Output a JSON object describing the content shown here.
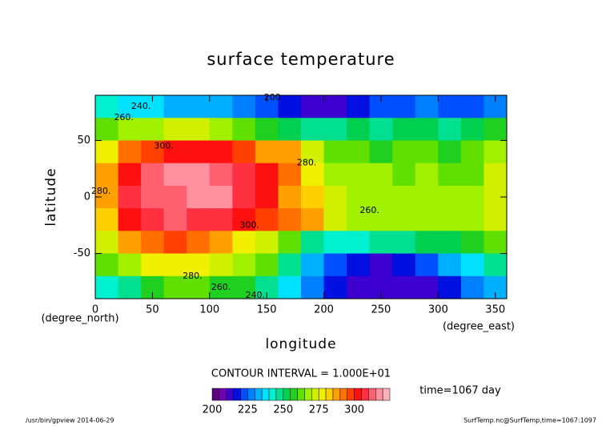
{
  "chart_data": {
    "type": "contourf",
    "title": "surface temperature",
    "x_label": "longitude",
    "y_label": "latitude",
    "x_unit": "(degree_east)",
    "y_unit": "(degree_north)",
    "contour_interval": "CONTOUR INTERVAL = 1.000E+01",
    "time_label": "time=1067 day",
    "footer_left": "/usr/bin/gpview  2014-06-29",
    "footer_right": "SurfTemp.nc@SurfTemp,time=1067:1097",
    "xlim": [
      0,
      360
    ],
    "ylim": [
      -90,
      90
    ],
    "xticks": [
      0,
      50,
      100,
      150,
      200,
      250,
      300,
      350
    ],
    "yticks": [
      -50,
      0,
      50
    ],
    "x": [
      10,
      30,
      50,
      70,
      90,
      110,
      130,
      150,
      170,
      190,
      210,
      230,
      250,
      270,
      290,
      310,
      330,
      350
    ],
    "y": [
      80,
      60,
      40,
      20,
      0,
      -20,
      -40,
      -60,
      -80
    ],
    "z": [
      [
        240,
        238,
        236,
        234,
        232,
        230,
        228,
        224,
        218,
        212,
        210,
        215,
        220,
        222,
        225,
        220,
        222,
        228
      ],
      [
        262,
        265,
        268,
        270,
        270,
        268,
        262,
        255,
        250,
        248,
        245,
        250,
        248,
        252,
        250,
        248,
        250,
        255
      ],
      [
        278,
        290,
        298,
        300,
        302,
        300,
        298,
        288,
        285,
        270,
        260,
        262,
        258,
        260,
        262,
        258,
        260,
        268
      ],
      [
        285,
        300,
        310,
        315,
        318,
        314,
        305,
        300,
        290,
        275,
        268,
        265,
        265,
        264,
        265,
        262,
        264,
        270
      ],
      [
        285,
        305,
        312,
        314,
        316,
        315,
        308,
        300,
        288,
        280,
        270,
        268,
        266,
        266,
        265,
        265,
        265,
        272
      ],
      [
        282,
        300,
        308,
        310,
        308,
        305,
        300,
        295,
        290,
        285,
        272,
        268,
        268,
        266,
        266,
        265,
        268,
        272
      ],
      [
        272,
        285,
        292,
        295,
        290,
        285,
        275,
        270,
        262,
        248,
        240,
        242,
        245,
        248,
        250,
        252,
        255,
        262
      ],
      [
        262,
        268,
        275,
        276,
        275,
        272,
        268,
        262,
        245,
        232,
        220,
        215,
        212,
        215,
        222,
        232,
        238,
        245
      ],
      [
        240,
        245,
        255,
        260,
        262,
        258,
        255,
        248,
        238,
        228,
        218,
        212,
        210,
        210,
        212,
        218,
        225,
        232
      ]
    ],
    "levels": [
      200,
      205,
      210,
      215,
      220,
      225,
      230,
      235,
      240,
      245,
      250,
      255,
      260,
      265,
      270,
      275,
      280,
      285,
      290,
      295,
      300,
      305,
      310,
      315,
      320,
      325
    ],
    "colors": [
      "#5a007f",
      "#7000b0",
      "#3c00d0",
      "#0010e0",
      "#0050ff",
      "#0080ff",
      "#00b0ff",
      "#00e0ff",
      "#00f0d0",
      "#00e090",
      "#00d050",
      "#20d020",
      "#60e000",
      "#a0f000",
      "#d0f000",
      "#f0f000",
      "#ffd000",
      "#ffa000",
      "#ff7000",
      "#ff4000",
      "#ff1010",
      "#ff3040",
      "#ff6070",
      "#ff90a0",
      "#ffb0b8"
    ],
    "colorbar_ticks": [
      200,
      225,
      250,
      275,
      300
    ],
    "contour_labels": [
      {
        "text": "300.",
        "lon": 60,
        "lat": 45
      },
      {
        "text": "280.",
        "lon": 5,
        "lat": 5
      },
      {
        "text": "260.",
        "lon": 25,
        "lat": 70
      },
      {
        "text": "240.",
        "lon": 40,
        "lat": 80
      },
      {
        "text": "200",
        "lon": 155,
        "lat": 88
      },
      {
        "text": "280.",
        "lon": 185,
        "lat": 30
      },
      {
        "text": "300.",
        "lon": 135,
        "lat": -25
      },
      {
        "text": "260.",
        "lon": 240,
        "lat": -12
      },
      {
        "text": "280.",
        "lon": 85,
        "lat": -70
      },
      {
        "text": "260.",
        "lon": 110,
        "lat": -80
      },
      {
        "text": "240.",
        "lon": 140,
        "lat": -87
      }
    ]
  }
}
